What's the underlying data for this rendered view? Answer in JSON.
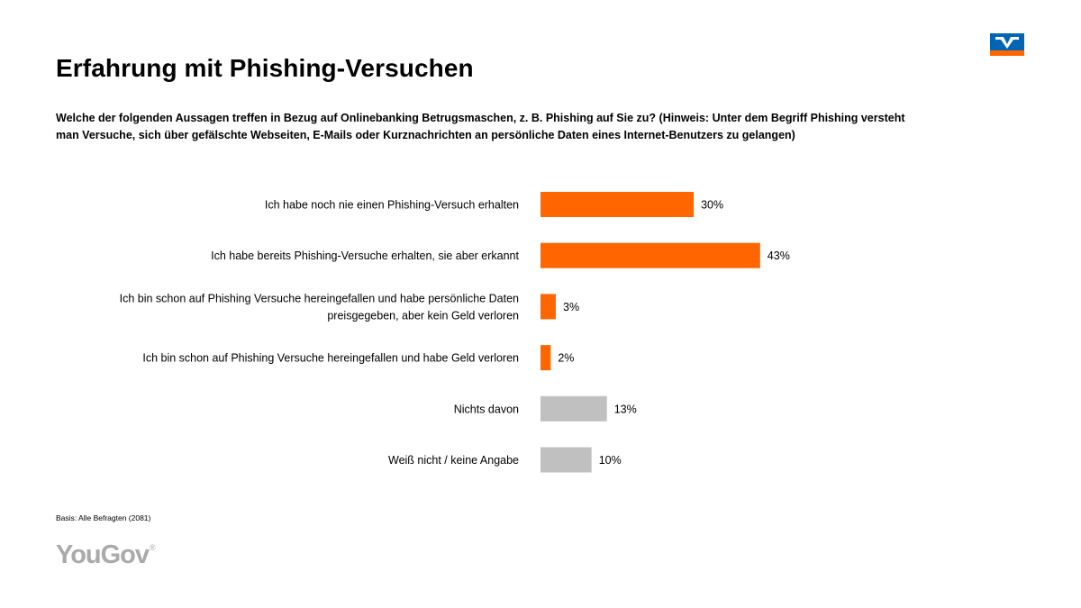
{
  "title": "Erfahrung mit Phishing-Versuchen",
  "question": "Welche der folgenden Aussagen treffen in Bezug auf Onlinebanking Betrugsmaschen, z. B. Phishing auf Sie zu? (Hinweis: Unter dem Begriff Phishing versteht man Versuche, sich über gefälschte Webseiten, E-Mails oder Kurznachrichten an persönliche Daten eines Internet-Benutzers zu gelangen)",
  "basis": "Basis: Alle Befragten (2081)",
  "brand": {
    "name": "YouGov",
    "mark": "®"
  },
  "colors": {
    "highlight": "#ff6600",
    "neutral": "#c0c0c0",
    "logo_blue": "#0066b3",
    "logo_orange": "#ff6600"
  },
  "chart_data": {
    "type": "bar",
    "orientation": "horizontal",
    "unit": "%",
    "categories": [
      [
        "Ich habe noch nie einen Phishing-Versuch erhalten"
      ],
      [
        "Ich habe bereits Phishing-Versuche erhalten, sie aber erkannt"
      ],
      [
        "Ich bin schon auf Phishing Versuche hereingefallen und habe persönliche Daten",
        "preisgegeben, aber kein Geld verloren"
      ],
      [
        "Ich bin schon auf Phishing Versuche hereingefallen und habe Geld verloren"
      ],
      [
        "Nichts davon"
      ],
      [
        "Weiß nicht / keine Angabe"
      ]
    ],
    "values": [
      30,
      43,
      3,
      2,
      13,
      10
    ],
    "labels": [
      "30%",
      "43%",
      "3%",
      "2%",
      "13%",
      "10%"
    ],
    "bar_colors": [
      "#ff6600",
      "#ff6600",
      "#ff6600",
      "#ff6600",
      "#c0c0c0",
      "#c0c0c0"
    ],
    "xlim": [
      0,
      100
    ],
    "grid": false,
    "legend": false
  }
}
